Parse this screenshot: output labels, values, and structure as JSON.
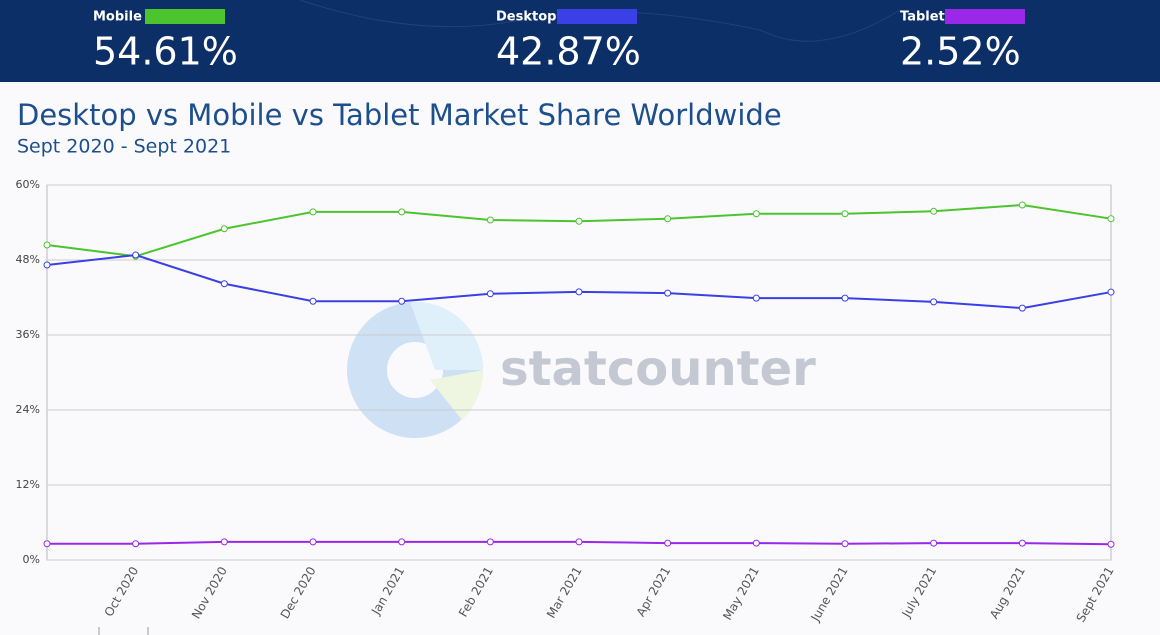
{
  "chart_data": {
    "type": "line",
    "title": "Desktop vs Mobile vs Tablet Market Share Worldwide",
    "subtitle": "Sept 2020 - Sept 2021",
    "watermark": "statcounter",
    "categories": [
      null,
      "Oct 2020",
      "Nov 2020",
      "Dec 2020",
      "Jan 2021",
      "Feb 2021",
      "Mar 2021",
      "Apr 2021",
      "May 2021",
      "June 2021",
      "July 2021",
      "Aug 2021",
      "Sept 2021"
    ],
    "series": [
      {
        "name": "Mobile",
        "color": "#4cc42e",
        "share": {
          "value": 54.61,
          "label": "54.61%"
        },
        "values": [
          50.4,
          48.6,
          53.0,
          55.7,
          55.7,
          54.4,
          54.2,
          54.6,
          55.4,
          55.4,
          55.8,
          56.8,
          54.61
        ]
      },
      {
        "name": "Desktop",
        "color": "#3a3fe6",
        "share": {
          "value": 42.87,
          "label": "42.87%"
        },
        "values": [
          47.2,
          48.8,
          44.2,
          41.4,
          41.4,
          42.6,
          42.9,
          42.7,
          41.9,
          41.9,
          41.3,
          40.3,
          42.87
        ]
      },
      {
        "name": "Tablet",
        "color": "#9b27e8",
        "share": {
          "value": 2.52,
          "label": "2.52%"
        },
        "values": [
          2.6,
          2.6,
          2.9,
          2.9,
          2.9,
          2.9,
          2.9,
          2.7,
          2.7,
          2.6,
          2.7,
          2.7,
          2.52
        ]
      }
    ],
    "ylim": [
      0,
      60
    ],
    "yticks": [
      {
        "value": 0,
        "label": "0%"
      },
      {
        "value": 12,
        "label": "12%"
      },
      {
        "value": 24,
        "label": "24%"
      },
      {
        "value": 36,
        "label": "36%"
      },
      {
        "value": 48,
        "label": "48%"
      },
      {
        "value": 60,
        "label": "60%"
      }
    ],
    "grid": true
  }
}
